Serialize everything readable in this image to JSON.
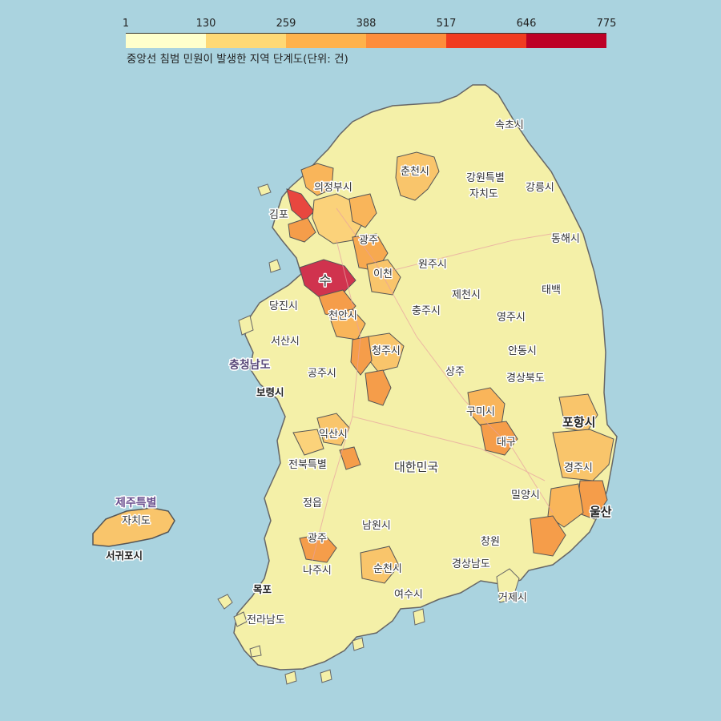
{
  "legend": {
    "ticks": [
      "1",
      "130",
      "259",
      "388",
      "517",
      "646",
      "775"
    ],
    "caption": "중앙선 침범 민원이 발생한 지역 단계도(단위: 건)",
    "colors": [
      "#ffffcc",
      "#fed976",
      "#feb24c",
      "#fd8d3c",
      "#f03b20",
      "#bd0026"
    ]
  },
  "colors": {
    "sea": "#aad3df",
    "land_low": "#f4f0a8",
    "land_mid": "#f9c56b",
    "land_high": "#f59d4a",
    "land_top": "#d8344a",
    "border": "#555555"
  },
  "map_labels": [
    {
      "name": "city-sokcho",
      "text": "속초시"
    },
    {
      "name": "city-chuncheon",
      "text": "춘천시"
    },
    {
      "name": "city-uijeongbu",
      "text": "의정부시"
    },
    {
      "name": "prov-gangwon",
      "text": "강원특별"
    },
    {
      "name": "prov-gangwon-2",
      "text": "자치도"
    },
    {
      "name": "city-gangneung",
      "text": "강릉시"
    },
    {
      "name": "city-gimpo",
      "text": "김포"
    },
    {
      "name": "city-gwangju-gg",
      "text": "광주"
    },
    {
      "name": "city-donghae",
      "text": "동해시"
    },
    {
      "name": "city-wonju",
      "text": "원주시"
    },
    {
      "name": "city-suwon",
      "text": "수"
    },
    {
      "name": "city-icheon",
      "text": "이천"
    },
    {
      "name": "city-jecheon",
      "text": "제천시"
    },
    {
      "name": "city-taebaek",
      "text": "태백"
    },
    {
      "name": "city-dangjin",
      "text": "당진시"
    },
    {
      "name": "city-cheonan",
      "text": "천안시"
    },
    {
      "name": "city-chungju",
      "text": "충주시"
    },
    {
      "name": "city-yeongju",
      "text": "영주시"
    },
    {
      "name": "city-seosan",
      "text": "서산시"
    },
    {
      "name": "prov-chungnam",
      "text": "충청남도"
    },
    {
      "name": "city-cheongju",
      "text": "청주시"
    },
    {
      "name": "city-andong",
      "text": "안동시"
    },
    {
      "name": "city-gongju",
      "text": "공주시"
    },
    {
      "name": "city-sangju",
      "text": "상주"
    },
    {
      "name": "city-boryeong",
      "text": "보령시"
    },
    {
      "name": "prov-gyeongbuk",
      "text": "경상북도"
    },
    {
      "name": "city-gumi",
      "text": "구미시"
    },
    {
      "name": "city-pohang",
      "text": "포항시"
    },
    {
      "name": "city-iksan",
      "text": "익산시"
    },
    {
      "name": "city-daegu",
      "text": "대구"
    },
    {
      "name": "prov-jeonbuk",
      "text": "전북특별"
    },
    {
      "name": "country-korea",
      "text": "대한민국"
    },
    {
      "name": "city-gyeongju",
      "text": "경주시"
    },
    {
      "name": "city-jeongeup",
      "text": "정읍"
    },
    {
      "name": "city-miryang",
      "text": "밀양시"
    },
    {
      "name": "prov-jeju",
      "text": "제주특별"
    },
    {
      "name": "prov-jeju-2",
      "text": "자치도"
    },
    {
      "name": "city-namwon",
      "text": "남원시"
    },
    {
      "name": "city-ulsan",
      "text": "울산"
    },
    {
      "name": "city-gwangju",
      "text": "광주"
    },
    {
      "name": "city-changwon",
      "text": "창원"
    },
    {
      "name": "city-seogwipo",
      "text": "서귀포시"
    },
    {
      "name": "city-naju",
      "text": "나주시"
    },
    {
      "name": "city-suncheon",
      "text": "순천시"
    },
    {
      "name": "prov-gyeongnam",
      "text": "경상남도"
    },
    {
      "name": "city-mokpo",
      "text": "목포"
    },
    {
      "name": "city-yeosu",
      "text": "여수시"
    },
    {
      "name": "city-geoje",
      "text": "거제시"
    },
    {
      "name": "prov-jeonnam",
      "text": "전라남도"
    }
  ]
}
